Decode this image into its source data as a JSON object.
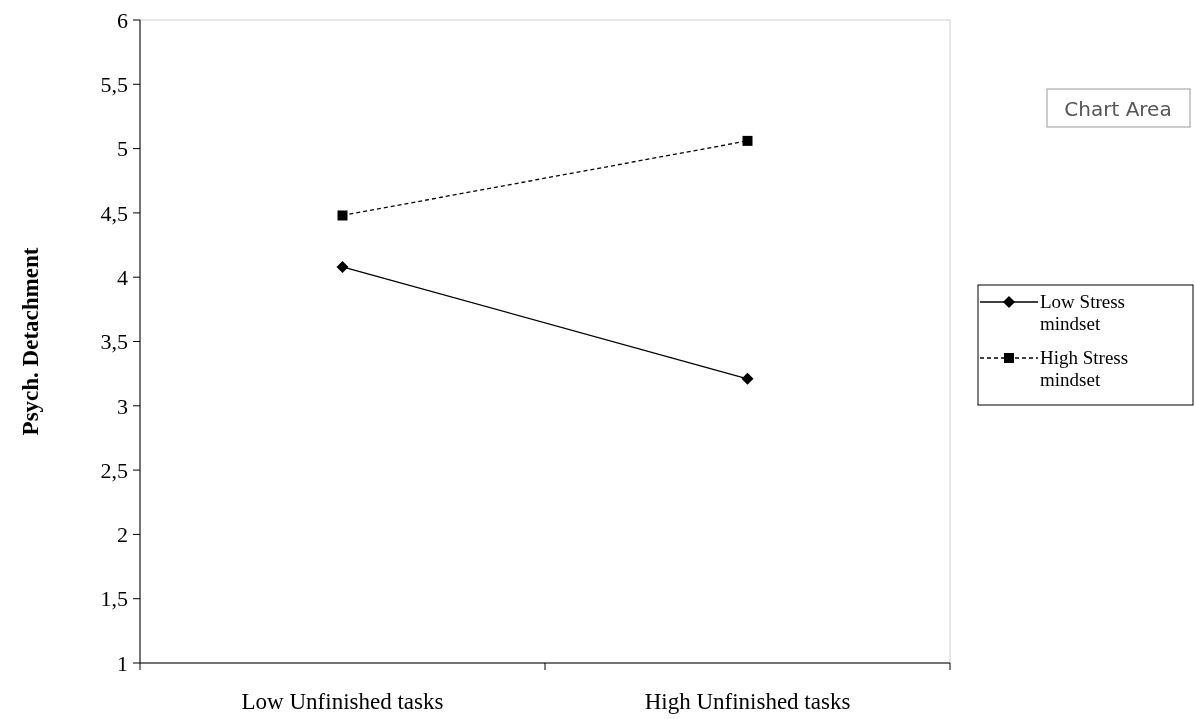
{
  "chart_data": {
    "type": "line",
    "ylabel": "Psych. Detachment",
    "categories": [
      "Low Unfinished tasks",
      "High Unfinished tasks"
    ],
    "series": [
      {
        "name": "Low Stress mindset",
        "color": "#000000",
        "values": [
          4.08,
          3.21
        ],
        "marker": "diamond",
        "line_style": "solid"
      },
      {
        "name": "High Stress mindset",
        "color": "#000000",
        "values": [
          4.48,
          5.06
        ],
        "marker": "square",
        "line_style": "dashed"
      }
    ],
    "ylim": [
      1,
      6
    ],
    "yticks": [
      1,
      {
        "value": 1.5,
        "label": "1,5"
      },
      2,
      {
        "value": 2.5,
        "label": "2,5"
      },
      3,
      {
        "value": 3.5,
        "label": "3,5"
      },
      4,
      {
        "value": 4.5,
        "label": "4,5"
      },
      5,
      {
        "value": 5.5,
        "label": "5,5"
      },
      6
    ],
    "grid": false,
    "legend": "right",
    "annotations": [
      "Chart Area"
    ]
  }
}
